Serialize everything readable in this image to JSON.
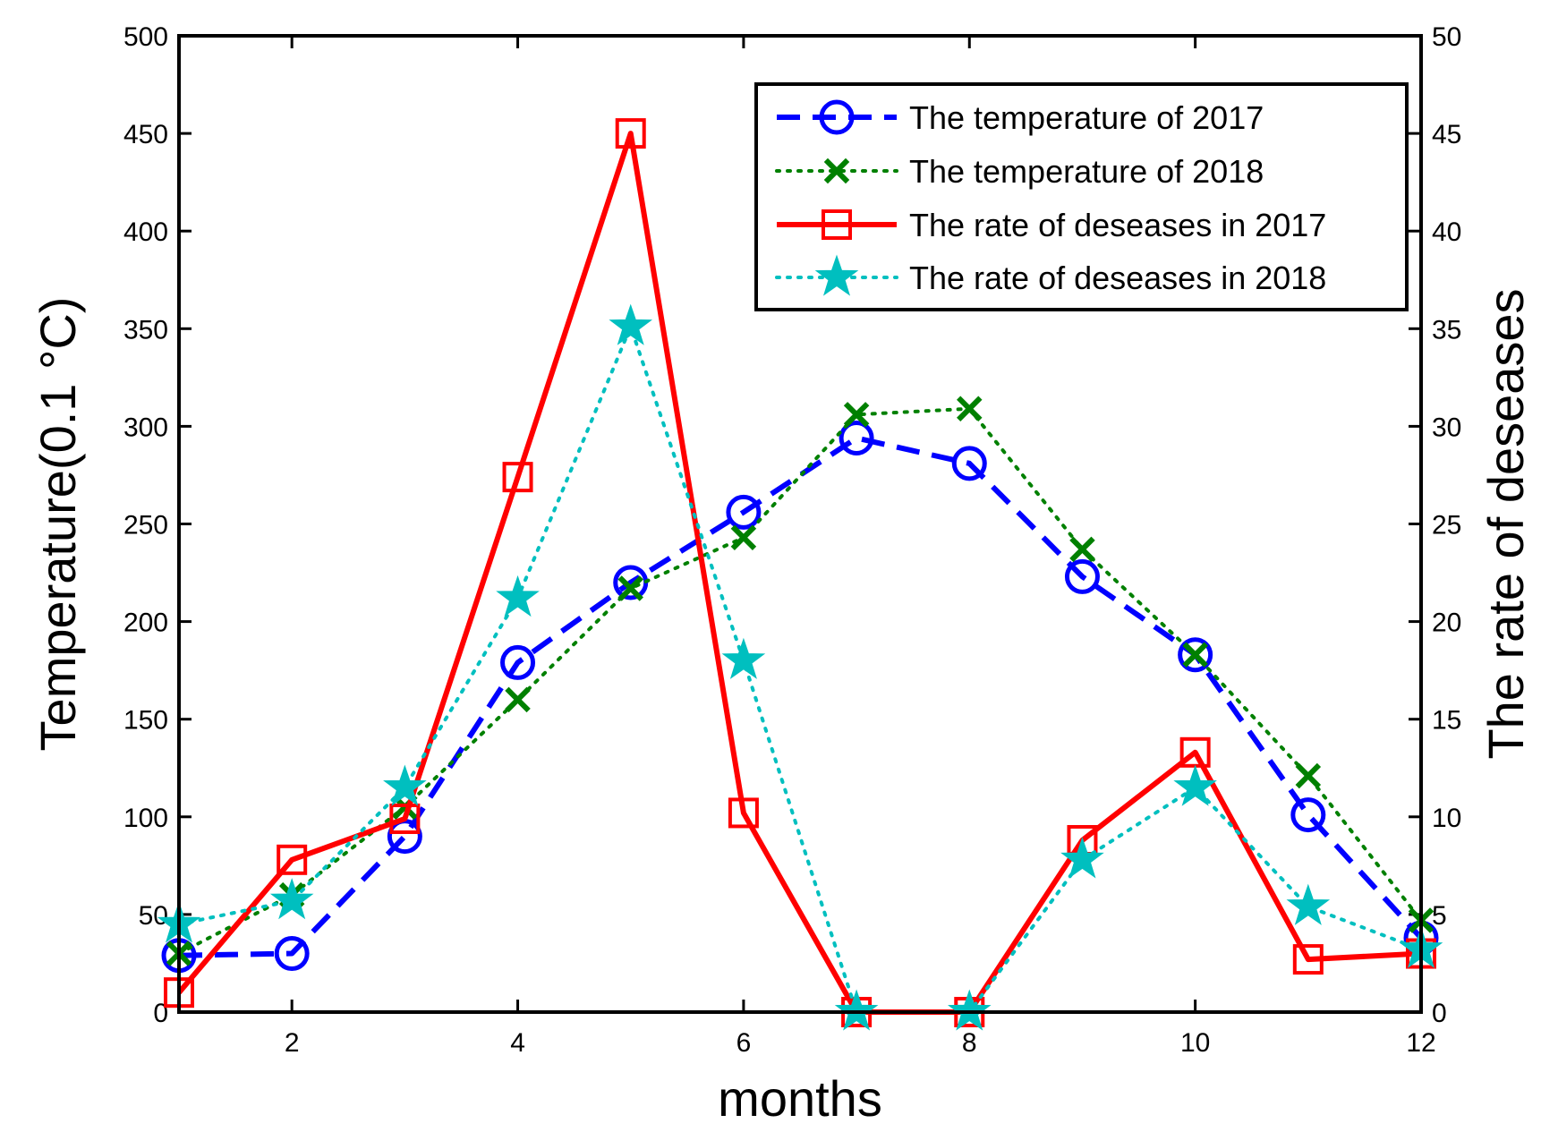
{
  "chart_data": {
    "type": "line",
    "title": "",
    "xlabel": "months",
    "ylabel_left": "Temperature(0.1 °C)",
    "ylabel_right": "The rate of deseases",
    "x": [
      1,
      2,
      3,
      4,
      5,
      6,
      7,
      8,
      9,
      10,
      11,
      12
    ],
    "xlim": [
      1,
      12
    ],
    "ylim_left": [
      0,
      500
    ],
    "ylim_right": [
      0,
      50
    ],
    "x_ticks": [
      "2",
      "4",
      "6",
      "8",
      "10",
      "12"
    ],
    "y_left_ticks": [
      "0",
      "50",
      "100",
      "150",
      "200",
      "250",
      "300",
      "350",
      "400",
      "450",
      "500"
    ],
    "y_right_ticks": [
      "0",
      "5",
      "10",
      "15",
      "20",
      "25",
      "30",
      "35",
      "40",
      "45",
      "50"
    ],
    "grid": false,
    "legend_position": "top-right",
    "series": [
      {
        "name": "The temperature of 2017",
        "axis": "left",
        "color": "#0000ff",
        "line_style": "dashed",
        "marker": "circle",
        "values": [
          29,
          30,
          90,
          179,
          220,
          256,
          294,
          281,
          223,
          183,
          101,
          38
        ]
      },
      {
        "name": "The temperature of 2018",
        "axis": "left",
        "color": "#008000",
        "line_style": "dotted",
        "marker": "x",
        "values": [
          30,
          60,
          105,
          160,
          217,
          243,
          306,
          309,
          237,
          183,
          121,
          47
        ]
      },
      {
        "name": "The rate of deseases in 2017",
        "axis": "right",
        "color": "#ff0000",
        "line_style": "solid",
        "marker": "square",
        "values": [
          1.0,
          7.8,
          9.9,
          27.4,
          45.0,
          10.2,
          0,
          0,
          8.8,
          13.3,
          2.7,
          3.0
        ]
      },
      {
        "name": "The rate of deseases in 2018",
        "axis": "right",
        "color": "#00bfbf",
        "line_style": "dotted",
        "marker": "star",
        "values": [
          4.5,
          5.7,
          11.5,
          21.2,
          35.1,
          18.0,
          0,
          0,
          7.8,
          11.5,
          5.4,
          3.2
        ]
      }
    ]
  }
}
